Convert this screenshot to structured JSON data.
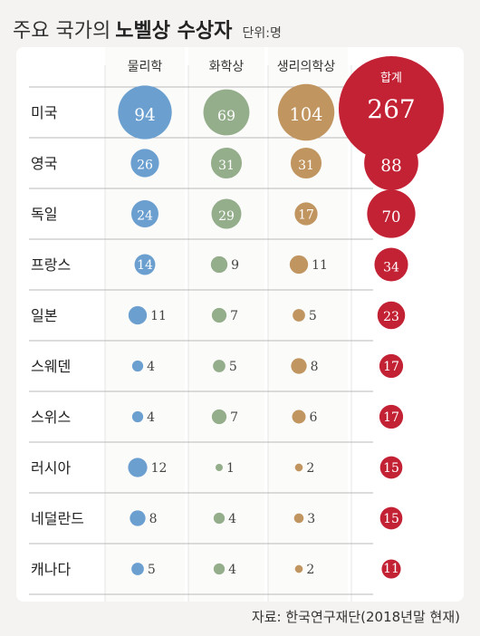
{
  "title": {
    "prefix": "주요 국가의",
    "bold": "노벨상 수상자",
    "unit": "단위:명"
  },
  "source": "자료: 한국연구재단(2018년말 현재)",
  "chart_data": {
    "type": "table",
    "title": "주요 국가의 노벨상 수상자",
    "unit": "단위:명",
    "categories": [
      "미국",
      "영국",
      "독일",
      "프랑스",
      "일본",
      "스웨덴",
      "스위스",
      "러시아",
      "네덜란드",
      "캐나다"
    ],
    "series": [
      {
        "name": "물리학",
        "color": "#6a9fcf",
        "values": [
          94,
          26,
          24,
          14,
          11,
          4,
          4,
          12,
          8,
          5
        ]
      },
      {
        "name": "화학상",
        "color": "#94ad8a",
        "values": [
          69,
          31,
          29,
          9,
          7,
          5,
          7,
          1,
          4,
          4
        ]
      },
      {
        "name": "생리의학상",
        "color": "#c1955f",
        "values": [
          104,
          31,
          17,
          11,
          5,
          8,
          6,
          2,
          3,
          2
        ]
      },
      {
        "name": "합계",
        "color": "#c32235",
        "values": [
          267,
          88,
          70,
          34,
          23,
          17,
          17,
          15,
          15,
          11
        ]
      }
    ],
    "encoding": "circle area proportional to value"
  }
}
